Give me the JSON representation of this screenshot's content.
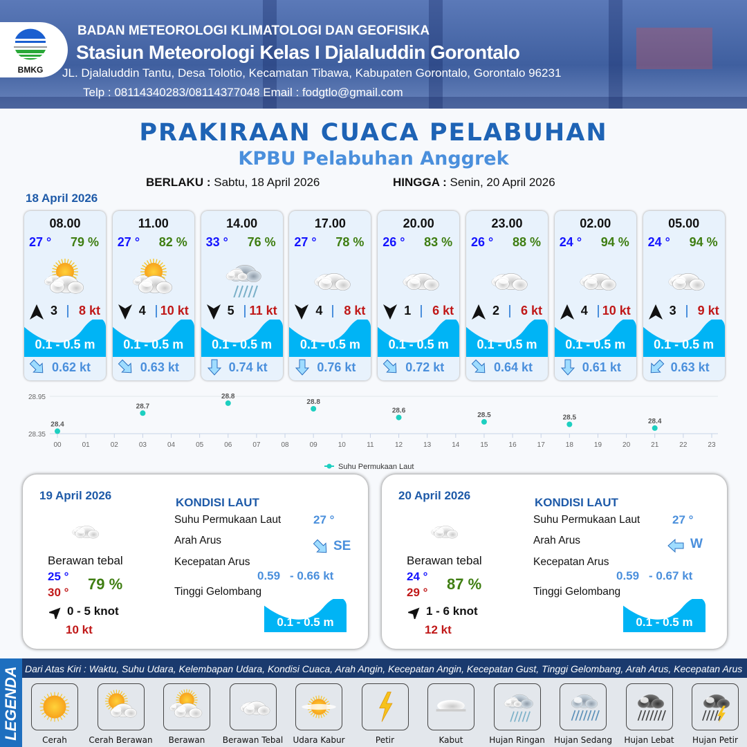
{
  "header": {
    "logo_text": "BMKG",
    "agency": "BADAN METEOROLOGI KLIMATOLOGI DAN GEOFISIKA",
    "station": "Stasiun Meteorologi Kelas I Djalaluddin Gorontalo",
    "address": "JL. Djalaluddin Tantu, Desa Tolotio, Kecamatan Tibawa, Kabupaten Gorontalo, Gorontalo 96231",
    "contact": "Telp : 08114340283/08114377048 Email : fodgtlo@gmail.com"
  },
  "title": "PRAKIRAAN CUACA PELABUHAN",
  "subtitle": "KPBU Pelabuhan Anggrek",
  "validity": {
    "from_label": "BERLAKU :",
    "from": "Sabtu, 18 April 2026",
    "to_label": "HINGGA :",
    "to": "Senin, 20 April 2026"
  },
  "day1": {
    "date": "18 April 2026",
    "cards": [
      {
        "time": "08.00",
        "temp": "27 °",
        "hum": "79 %",
        "weather": "berawan",
        "wind_dir": "N",
        "wind": "3",
        "gust": "8 kt",
        "wave": "0.1 - 0.5 m",
        "current_dir": "SE",
        "current": "0.62 kt"
      },
      {
        "time": "11.00",
        "temp": "27 °",
        "hum": "82 %",
        "weather": "berawan",
        "wind_dir": "S",
        "wind": "4",
        "gust": "10 kt",
        "wave": "0.1 - 0.5 m",
        "current_dir": "SE",
        "current": "0.63 kt"
      },
      {
        "time": "14.00",
        "temp": "33 °",
        "hum": "76 %",
        "weather": "hujan-ringan",
        "wind_dir": "S",
        "wind": "5",
        "gust": "11 kt",
        "wave": "0.1 - 0.5 m",
        "current_dir": "S",
        "current": "0.74 kt"
      },
      {
        "time": "17.00",
        "temp": "27 °",
        "hum": "78 %",
        "weather": "berawan-tebal",
        "wind_dir": "S",
        "wind": "4",
        "gust": "8 kt",
        "wave": "0.1 - 0.5 m",
        "current_dir": "S",
        "current": "0.76 kt"
      },
      {
        "time": "20.00",
        "temp": "26 °",
        "hum": "83 %",
        "weather": "berawan-tebal",
        "wind_dir": "S",
        "wind": "1",
        "gust": "6 kt",
        "wave": "0.1 - 0.5 m",
        "current_dir": "SE",
        "current": "0.72 kt"
      },
      {
        "time": "23.00",
        "temp": "26 °",
        "hum": "88 %",
        "weather": "berawan-tebal",
        "wind_dir": "N",
        "wind": "2",
        "gust": "6 kt",
        "wave": "0.1 - 0.5 m",
        "current_dir": "SE",
        "current": "0.64 kt"
      },
      {
        "time": "02.00",
        "temp": "24 °",
        "hum": "94 %",
        "weather": "berawan-tebal",
        "wind_dir": "N",
        "wind": "4",
        "gust": "10 kt",
        "wave": "0.1 - 0.5 m",
        "current_dir": "S",
        "current": "0.61 kt"
      },
      {
        "time": "05.00",
        "temp": "24 °",
        "hum": "94 %",
        "weather": "berawan-tebal",
        "wind_dir": "N",
        "wind": "3",
        "gust": "9 kt",
        "wave": "0.1 - 0.5 m",
        "current_dir": "SW",
        "current": "0.63 kt"
      }
    ]
  },
  "chart_data": {
    "type": "scatter",
    "series": [
      {
        "name": "Suhu Permukaan Laut",
        "x": [
          "00",
          "03",
          "06",
          "09",
          "12",
          "15",
          "18",
          "21"
        ],
        "values": [
          28.39,
          28.68,
          28.84,
          28.75,
          28.61,
          28.54,
          28.5,
          28.44
        ],
        "labels": [
          "28.4",
          "28.7",
          "28.8",
          "28.8",
          "28.6",
          "28.5",
          "28.5",
          "28.4"
        ]
      }
    ],
    "x_ticks": [
      "00",
      "01",
      "02",
      "03",
      "04",
      "05",
      "06",
      "07",
      "08",
      "09",
      "10",
      "11",
      "12",
      "13",
      "14",
      "15",
      "16",
      "17",
      "18",
      "19",
      "20",
      "21",
      "22",
      "23"
    ],
    "y_ticks": [
      "28.35",
      "28.95"
    ],
    "ylim": [
      28.35,
      28.95
    ],
    "grid": true,
    "legend": "bottom",
    "color": "#1dcfc0"
  },
  "panels": [
    {
      "date": "19 April 2026",
      "weather": "berawan-tebal",
      "condition": "Berawan tebal",
      "tmin": "25 °",
      "tmax": "30 °",
      "hum": "79 %",
      "wind_dir": "NE",
      "wind": "0  - 5 knot",
      "gust": "10 kt",
      "kondisi_title": "KONDISI LAUT",
      "sst_label": "Suhu Permukaan Laut",
      "sst": "27 °",
      "dir_label": "Arah Arus",
      "current_dir": "SE",
      "speed_label": "Kecepatan Arus",
      "speed_min": "0.59",
      "speed_max": "- 0.66 kt",
      "wave_label": "Tinggi Gelombang",
      "wave": "0.1 - 0.5 m"
    },
    {
      "date": "20 April 2026",
      "weather": "berawan-tebal",
      "condition": "Berawan tebal",
      "tmin": "24 °",
      "tmax": "29 °",
      "hum": "87 %",
      "wind_dir": "NE",
      "wind": "1  - 6 knot",
      "gust": "12 kt",
      "kondisi_title": "KONDISI LAUT",
      "sst_label": "Suhu Permukaan Laut",
      "sst": "27 °",
      "dir_label": "Arah Arus",
      "current_dir": "W",
      "speed_label": "Kecepatan Arus",
      "speed_min": "0.59",
      "speed_max": "- 0.67 kt",
      "wave_label": "Tinggi Gelombang",
      "wave": "0.1 - 0.5 m"
    }
  ],
  "legend": {
    "side_label": "LEGENDA",
    "description": "Dari Atas Kiri : Waktu, Suhu Udara, Kelembapan Udara, Kondisi Cuaca, Arah Angin, Kecepatan Angin, Kecepatan Gust, Tinggi Gelombang, Arah Arus, Kecepatan Arus",
    "items": [
      {
        "label": "Cerah",
        "icon": "cerah"
      },
      {
        "label": "Cerah Berawan",
        "icon": "cerah-berawan"
      },
      {
        "label": "Berawan",
        "icon": "berawan"
      },
      {
        "label": "Berawan Tebal",
        "icon": "berawan-tebal"
      },
      {
        "label": "Udara Kabur",
        "icon": "udara-kabur"
      },
      {
        "label": "Petir",
        "icon": "petir"
      },
      {
        "label": "Kabut",
        "icon": "kabut"
      },
      {
        "label": "Hujan Ringan",
        "icon": "hujan-ringan"
      },
      {
        "label": "Hujan Sedang",
        "icon": "hujan-sedang"
      },
      {
        "label": "Hujan Lebat",
        "icon": "hujan-lebat"
      },
      {
        "label": "Hujan Petir",
        "icon": "hujan-petir"
      }
    ]
  },
  "colors": {
    "wave": "#00b4f5",
    "title": "#1e63b5",
    "temp": "#1414ff",
    "humidity": "#3f7e12",
    "gust": "#c01818",
    "current": "#4a8fdc"
  }
}
